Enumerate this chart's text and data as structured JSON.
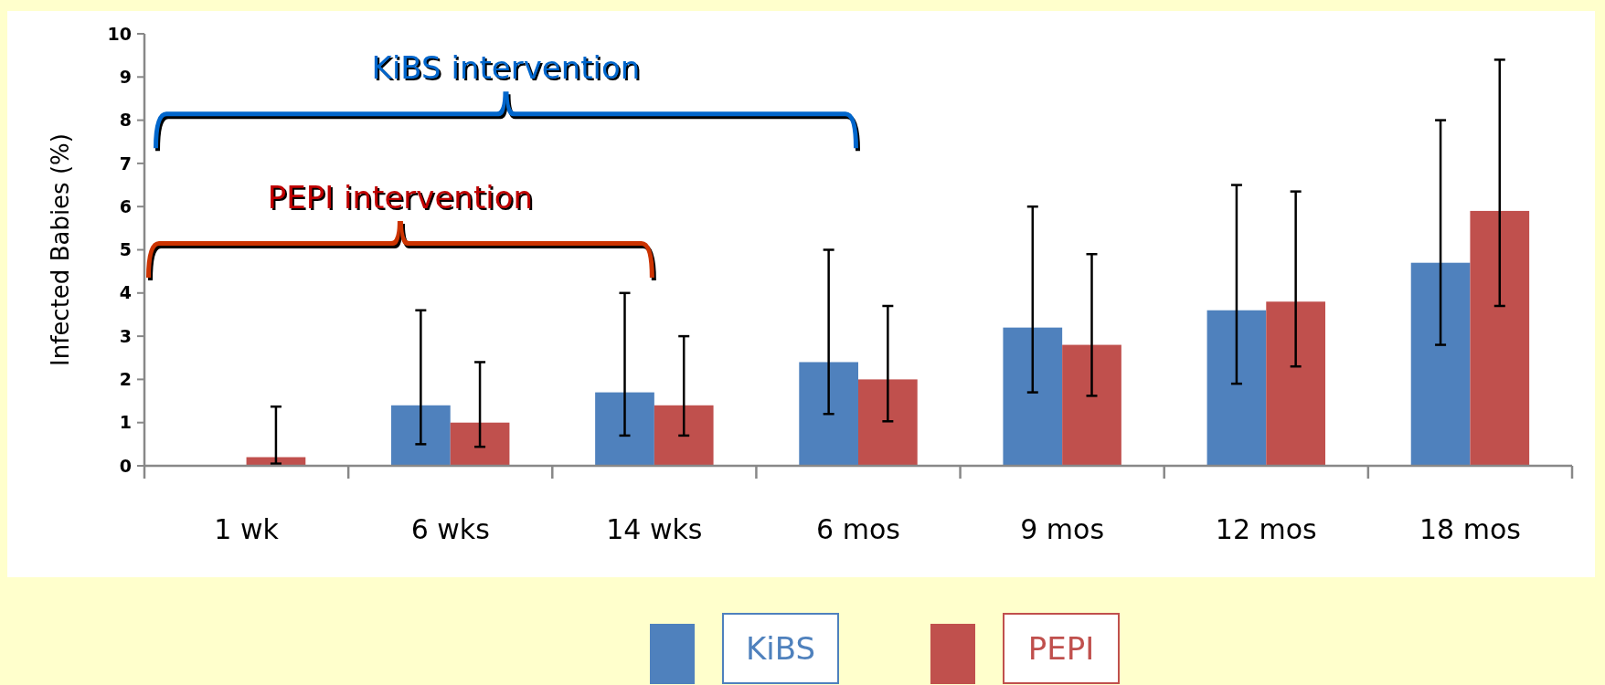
{
  "chart_data": {
    "type": "bar",
    "ylabel": "Infected Babies (%)",
    "categories": [
      "1 wk",
      "6 wks",
      "14 wks",
      "6 mos",
      "9 mos",
      "12 mos",
      "18 mos"
    ],
    "series": [
      {
        "name": "KiBS",
        "color": "#4f81bd",
        "values": [
          0,
          1.4,
          1.7,
          2.4,
          3.2,
          3.6,
          4.7
        ],
        "errors": [
          null,
          [
            0.5,
            3.6
          ],
          [
            0.7,
            4.0
          ],
          [
            1.2,
            5.0
          ],
          [
            1.7,
            6.0
          ],
          [
            1.9,
            6.5
          ],
          [
            2.8,
            8.0
          ]
        ]
      },
      {
        "name": "PEPI",
        "color": "#c0504d",
        "values": [
          0.2,
          1.0,
          1.4,
          2.0,
          2.8,
          3.8,
          5.9
        ],
        "errors": [
          [
            0.05,
            1.37
          ],
          [
            0.44,
            2.4
          ],
          [
            0.7,
            3.0
          ],
          [
            1.03,
            3.7
          ],
          [
            1.62,
            4.9
          ],
          [
            2.3,
            6.35
          ],
          [
            3.7,
            9.4
          ]
        ]
      }
    ],
    "ylim": [
      0,
      10
    ],
    "yticks": [
      0,
      1,
      2,
      3,
      4,
      5,
      6,
      7,
      8,
      9,
      10
    ],
    "legend": "bottom",
    "annotations": [
      "KiBS intervention",
      "PEPI intervention"
    ]
  }
}
